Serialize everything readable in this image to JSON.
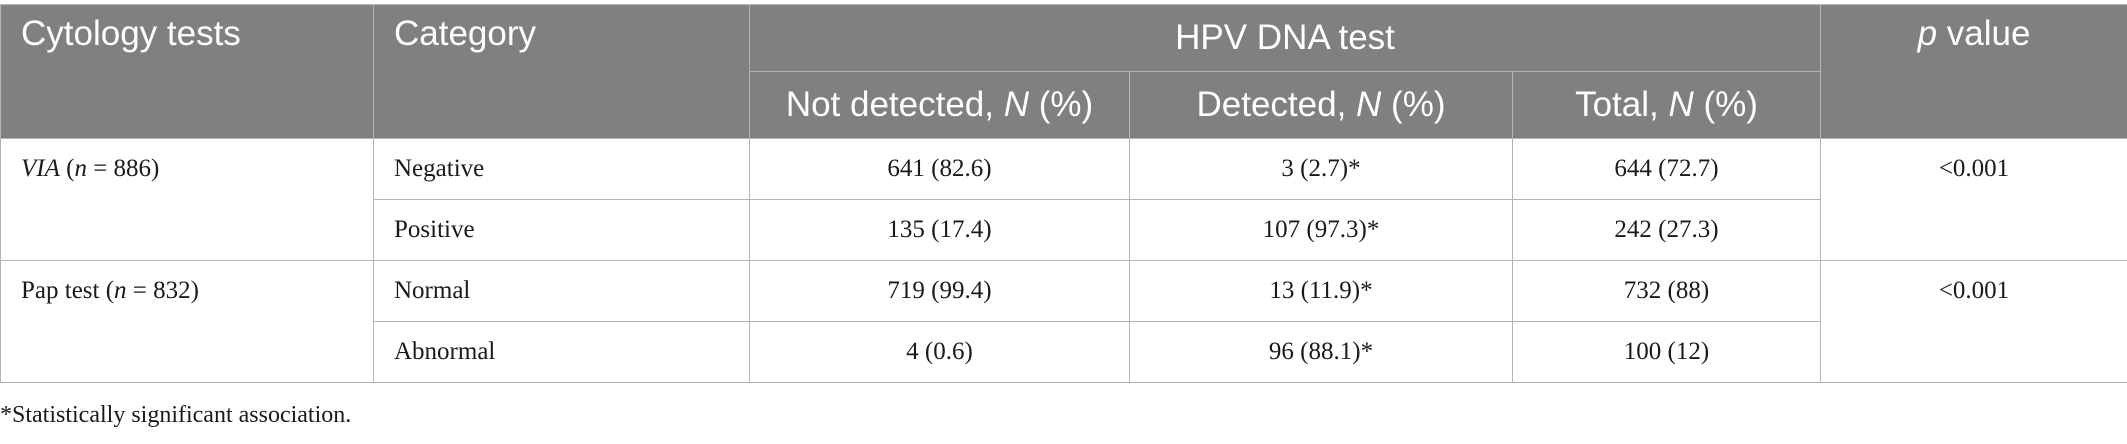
{
  "header": {
    "col1": "Cytology tests",
    "col2": "Category",
    "group": "HPV DNA test",
    "pval_italic": "p",
    "pval_rest": " value",
    "sub": [
      {
        "label": "Not detected, ",
        "n": "N",
        "pct": " (%)"
      },
      {
        "label": "Detected, ",
        "n": "N",
        "pct": " (%)"
      },
      {
        "label": "Total, ",
        "n": "N",
        "pct": " (%)"
      }
    ]
  },
  "groups": [
    {
      "test_name": "VIA",
      "n_label": "n",
      "n_value": " = 886)",
      "n_open": " (",
      "p_value": "<0.001",
      "rows": [
        {
          "category": "Negative",
          "not_detected": "641 (82.6)",
          "detected": "3 (2.7)*",
          "total": "644 (72.7)"
        },
        {
          "category": "Positive",
          "not_detected": "135 (17.4)",
          "detected": "107 (97.3)*",
          "total": "242 (27.3)"
        }
      ]
    },
    {
      "test_name": "Pap test",
      "n_label": "n",
      "n_value": " = 832)",
      "n_open": " (",
      "p_value": "<0.001",
      "rows": [
        {
          "category": "Normal",
          "not_detected": "719 (99.4)",
          "detected": "13 (11.9)*",
          "total": "732 (88)"
        },
        {
          "category": "Abnormal",
          "not_detected": "4 (0.6)",
          "detected": "96 (88.1)*",
          "total": "100 (12)"
        }
      ]
    }
  ],
  "footnote": "*Statistically significant association."
}
